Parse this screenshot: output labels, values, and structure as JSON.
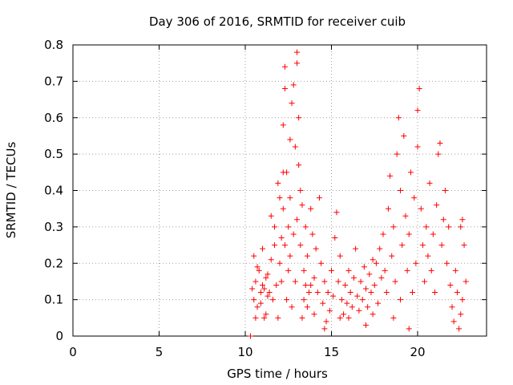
{
  "chart_data": {
    "type": "scatter",
    "title": "Day 306 of 2016, SRMTID for receiver cuib",
    "xlabel": "GPS time / hours",
    "ylabel": "SRMTID / TECUs",
    "xlim": [
      0,
      24
    ],
    "ylim": [
      0,
      0.8
    ],
    "xticks": [
      0,
      5,
      10,
      15,
      20
    ],
    "xtick_labels": [
      "0",
      "5",
      "10",
      "15",
      "20"
    ],
    "yticks": [
      0,
      0.1,
      0.2,
      0.3,
      0.4,
      0.5,
      0.6,
      0.7,
      0.8
    ],
    "ytick_labels": [
      "0",
      "0.1",
      "0.2",
      "0.3",
      "0.4",
      "0.5",
      "0.6",
      "0.7",
      "0.8"
    ],
    "grid": true,
    "marker": "+",
    "color": "#ff0000",
    "series": [
      {
        "name": "SRMTID",
        "points": [
          [
            10.3,
            0.0
          ],
          [
            10.4,
            0.13
          ],
          [
            10.5,
            0.1
          ],
          [
            10.6,
            0.15
          ],
          [
            10.7,
            0.08
          ],
          [
            10.8,
            0.18
          ],
          [
            10.9,
            0.12
          ],
          [
            11.0,
            0.14
          ],
          [
            11.1,
            0.05
          ],
          [
            11.2,
            0.16
          ],
          [
            11.3,
            0.11
          ],
          [
            10.5,
            0.22
          ],
          [
            10.7,
            0.19
          ],
          [
            10.9,
            0.09
          ],
          [
            11.1,
            0.13
          ],
          [
            11.3,
            0.17
          ],
          [
            11.4,
            0.12
          ],
          [
            11.5,
            0.21
          ],
          [
            11.6,
            0.1
          ],
          [
            11.7,
            0.25
          ],
          [
            11.8,
            0.14
          ],
          [
            11.5,
            0.33
          ],
          [
            11.7,
            0.3
          ],
          [
            11.9,
            0.42
          ],
          [
            12.0,
            0.38
          ],
          [
            12.1,
            0.27
          ],
          [
            12.2,
            0.35
          ],
          [
            12.2,
            0.58
          ],
          [
            12.3,
            0.68
          ],
          [
            12.3,
            0.74
          ],
          [
            12.4,
            0.45
          ],
          [
            12.5,
            0.3
          ],
          [
            12.6,
            0.54
          ],
          [
            12.7,
            0.64
          ],
          [
            12.8,
            0.69
          ],
          [
            12.9,
            0.52
          ],
          [
            13.0,
            0.78
          ],
          [
            13.0,
            0.75
          ],
          [
            13.1,
            0.6
          ],
          [
            13.1,
            0.47
          ],
          [
            13.2,
            0.4
          ],
          [
            12.0,
            0.2
          ],
          [
            12.1,
            0.15
          ],
          [
            12.3,
            0.25
          ],
          [
            12.4,
            0.1
          ],
          [
            12.5,
            0.18
          ],
          [
            12.6,
            0.22
          ],
          [
            12.7,
            0.08
          ],
          [
            12.8,
            0.28
          ],
          [
            12.9,
            0.15
          ],
          [
            13.0,
            0.32
          ],
          [
            13.2,
            0.25
          ],
          [
            13.3,
            0.36
          ],
          [
            13.4,
            0.18
          ],
          [
            13.5,
            0.3
          ],
          [
            13.6,
            0.22
          ],
          [
            13.7,
            0.12
          ],
          [
            13.8,
            0.35
          ],
          [
            13.9,
            0.28
          ],
          [
            14.0,
            0.16
          ],
          [
            14.1,
            0.24
          ],
          [
            13.3,
            0.05
          ],
          [
            13.4,
            0.1
          ],
          [
            13.6,
            0.08
          ],
          [
            13.8,
            0.14
          ],
          [
            14.0,
            0.06
          ],
          [
            14.2,
            0.12
          ],
          [
            14.3,
            0.38
          ],
          [
            14.4,
            0.2
          ],
          [
            14.5,
            0.09
          ],
          [
            14.6,
            0.15
          ],
          [
            14.7,
            0.04
          ],
          [
            14.8,
            0.12
          ],
          [
            14.9,
            0.07
          ],
          [
            15.0,
            0.18
          ],
          [
            15.1,
            0.11
          ],
          [
            15.2,
            0.27
          ],
          [
            15.3,
            0.34
          ],
          [
            15.4,
            0.15
          ],
          [
            15.5,
            0.22
          ],
          [
            15.6,
            0.1
          ],
          [
            15.7,
            0.06
          ],
          [
            15.8,
            0.14
          ],
          [
            15.9,
            0.09
          ],
          [
            16.0,
            0.18
          ],
          [
            16.1,
            0.12
          ],
          [
            16.2,
            0.08
          ],
          [
            16.3,
            0.16
          ],
          [
            16.4,
            0.24
          ],
          [
            16.5,
            0.11
          ],
          [
            16.6,
            0.07
          ],
          [
            16.7,
            0.15
          ],
          [
            16.8,
            0.1
          ],
          [
            16.9,
            0.19
          ],
          [
            17.0,
            0.13
          ],
          [
            17.1,
            0.08
          ],
          [
            17.2,
            0.17
          ],
          [
            17.3,
            0.12
          ],
          [
            17.4,
            0.06
          ],
          [
            17.5,
            0.14
          ],
          [
            17.6,
            0.2
          ],
          [
            17.7,
            0.09
          ],
          [
            17.8,
            0.24
          ],
          [
            17.9,
            0.16
          ],
          [
            18.0,
            0.28
          ],
          [
            18.1,
            0.18
          ],
          [
            18.2,
            0.12
          ],
          [
            18.3,
            0.35
          ],
          [
            18.4,
            0.44
          ],
          [
            18.5,
            0.22
          ],
          [
            18.6,
            0.3
          ],
          [
            18.7,
            0.15
          ],
          [
            18.8,
            0.5
          ],
          [
            18.9,
            0.6
          ],
          [
            19.0,
            0.4
          ],
          [
            19.1,
            0.25
          ],
          [
            19.2,
            0.55
          ],
          [
            19.3,
            0.33
          ],
          [
            19.4,
            0.18
          ],
          [
            19.5,
            0.28
          ],
          [
            19.6,
            0.45
          ],
          [
            19.7,
            0.12
          ],
          [
            19.8,
            0.38
          ],
          [
            19.9,
            0.2
          ],
          [
            20.0,
            0.62
          ],
          [
            20.0,
            0.52
          ],
          [
            20.1,
            0.68
          ],
          [
            20.2,
            0.35
          ],
          [
            20.3,
            0.25
          ],
          [
            20.4,
            0.15
          ],
          [
            20.5,
            0.3
          ],
          [
            20.6,
            0.22
          ],
          [
            20.7,
            0.42
          ],
          [
            20.8,
            0.18
          ],
          [
            20.9,
            0.28
          ],
          [
            21.0,
            0.12
          ],
          [
            21.1,
            0.36
          ],
          [
            21.2,
            0.5
          ],
          [
            21.3,
            0.53
          ],
          [
            21.4,
            0.25
          ],
          [
            21.5,
            0.32
          ],
          [
            21.6,
            0.4
          ],
          [
            21.7,
            0.2
          ],
          [
            21.8,
            0.3
          ],
          [
            21.9,
            0.14
          ],
          [
            22.0,
            0.08
          ],
          [
            22.1,
            0.04
          ],
          [
            22.2,
            0.18
          ],
          [
            22.3,
            0.12
          ],
          [
            22.4,
            0.02
          ],
          [
            22.5,
            0.3
          ],
          [
            22.6,
            0.32
          ],
          [
            22.7,
            0.25
          ],
          [
            22.8,
            0.15
          ],
          [
            22.6,
            0.1
          ],
          [
            22.5,
            0.06
          ],
          [
            19.5,
            0.02
          ],
          [
            18.6,
            0.05
          ],
          [
            17.0,
            0.03
          ],
          [
            15.5,
            0.05
          ],
          [
            14.6,
            0.02
          ],
          [
            10.6,
            0.05
          ],
          [
            11.0,
            0.24
          ],
          [
            11.2,
            0.06
          ],
          [
            11.9,
            0.05
          ],
          [
            12.2,
            0.45
          ],
          [
            12.6,
            0.38
          ],
          [
            13.5,
            0.14
          ],
          [
            16.0,
            0.05
          ],
          [
            17.4,
            0.21
          ],
          [
            19.0,
            0.1
          ]
        ]
      }
    ]
  }
}
